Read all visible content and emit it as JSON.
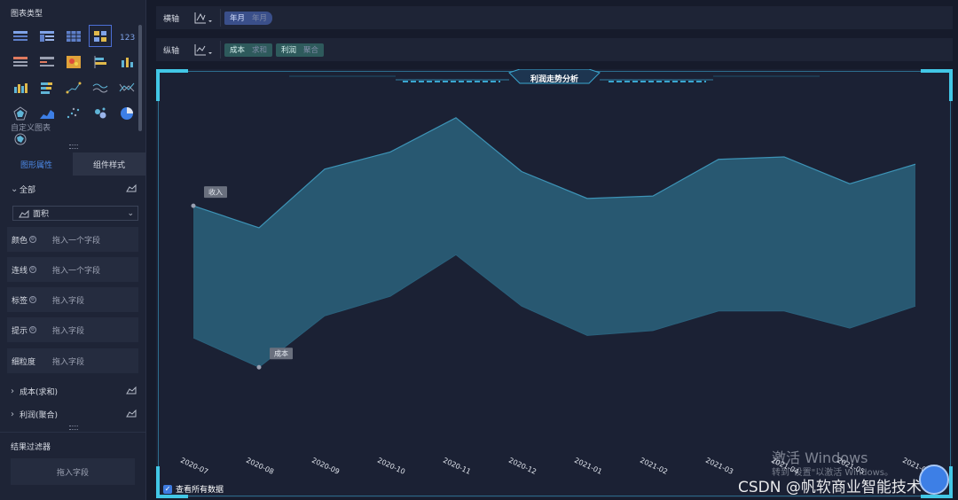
{
  "sidebar": {
    "chart_type_title": "图表类型",
    "custom_chart": "自定义图表",
    "tabs": {
      "graph_props": "图形属性",
      "component_style": "组件样式"
    },
    "all_label": "全部",
    "chart_select": "面积",
    "fields": [
      {
        "label": "颜色",
        "placeholder": "拖入一个字段",
        "has_dot": true
      },
      {
        "label": "连线",
        "placeholder": "拖入一个字段",
        "has_dot": true
      },
      {
        "label": "标签",
        "placeholder": "拖入字段",
        "has_dot": true
      },
      {
        "label": "提示",
        "placeholder": "拖入字段",
        "has_dot": true
      },
      {
        "label": "细粒度",
        "placeholder": "拖入字段",
        "has_dot": false
      }
    ],
    "series_items": [
      "成本(求和)",
      "利润(聚合)"
    ],
    "result_filter": "结果过滤器",
    "drop_field": "拖入字段"
  },
  "axes": {
    "x_label": "横轴",
    "y_label": "纵轴",
    "x_pill": {
      "main": "年月",
      "sub": "年月"
    },
    "y_pills": [
      {
        "main": "成本",
        "sub": "求和"
      },
      {
        "main": "利润",
        "sub": "聚合"
      }
    ]
  },
  "chart_data": {
    "type": "area",
    "title": "利润走势分析",
    "categories": [
      "2020-07",
      "2020-08",
      "2020-09",
      "2020-10",
      "2020-11",
      "2020-12",
      "2021-01",
      "2021-02",
      "2021-03",
      "2021-04",
      "2021-05",
      "2021-06"
    ],
    "series": [
      {
        "name": "收入",
        "values": [
          100,
          91,
          115,
          122,
          136,
          114,
          103,
          104,
          119,
          120,
          109,
          117
        ]
      },
      {
        "name": "成本",
        "values": [
          46,
          34,
          55,
          63,
          80,
          59,
          47,
          49,
          57,
          57,
          50,
          59
        ]
      }
    ],
    "ylim": [
      0,
      145
    ],
    "fill_color": "#2a617c",
    "line_color": "#3d93b6",
    "callouts": [
      "收入",
      "成本"
    ]
  },
  "show_all_data": "查看所有数据",
  "watermark": {
    "line1": "激活 Windows",
    "line2": "转到\"设置\"以激活 Windows。"
  },
  "csdn_mark": "CSDN @帆软商业智能技术"
}
